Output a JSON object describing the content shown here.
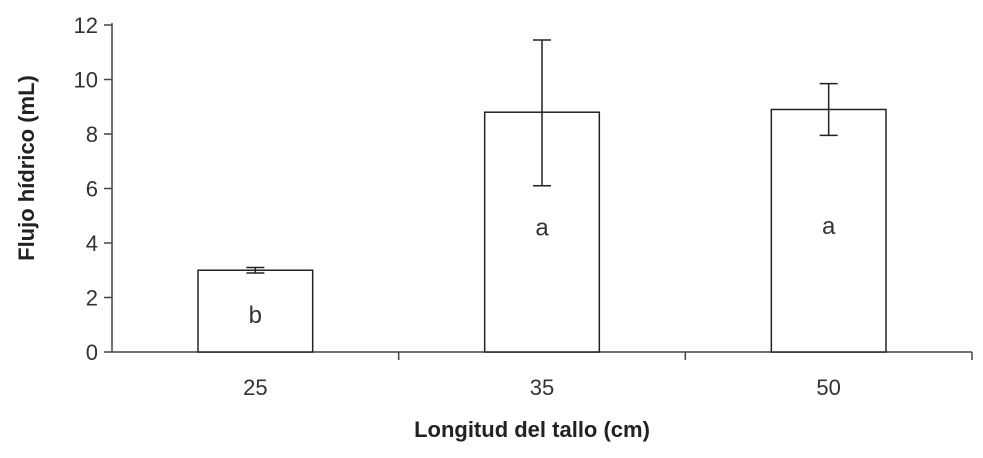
{
  "chart_data": {
    "type": "bar",
    "title": "",
    "xlabel": "Longitud  del tallo (cm)",
    "ylabel": "Flujo hídrico  (mL)",
    "categories": [
      "25",
      "35",
      "50"
    ],
    "values": [
      3.0,
      8.8,
      8.9
    ],
    "error_low": [
      2.9,
      6.1,
      7.95
    ],
    "error_high": [
      3.1,
      11.45,
      9.85
    ],
    "significance_letters": [
      "b",
      "a",
      "a"
    ],
    "ylim": [
      0,
      12
    ],
    "yticks": [
      0,
      2,
      4,
      6,
      8,
      10,
      12
    ],
    "grid": false,
    "legend": "none"
  }
}
